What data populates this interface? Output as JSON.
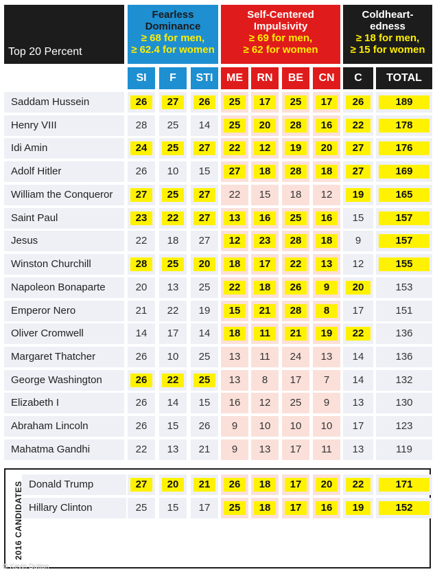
{
  "header": {
    "left_title": "Top 20 Percent",
    "groups": [
      {
        "title_lines": [
          "Fearless",
          "Dominance"
        ],
        "criteria_lines": [
          "≥ 68 for men,",
          "≥ 62.4 for women"
        ]
      },
      {
        "title_lines": [
          "Self-Centered",
          "Impulsivity"
        ],
        "criteria_lines": [
          "≥ 69 for men,",
          "≥ 62 for women"
        ]
      },
      {
        "title_lines": [
          "Coldheart-",
          "edness"
        ],
        "criteria_lines": [
          "≥ 18 for men,",
          "≥ 15 for women"
        ]
      }
    ]
  },
  "colors": {
    "fearless_dominance": "#1e8fd1",
    "self_centered_impulsivity": "#e01b1b",
    "coldheartedness": "#1c1c1c",
    "highlight": "#fff200"
  },
  "chart_data": {
    "type": "table",
    "columns": [
      "SI",
      "F",
      "STI",
      "ME",
      "RN",
      "BE",
      "CN",
      "C",
      "TOTAL"
    ],
    "rows": [
      {
        "name": "Saddam Hussein",
        "values": [
          26,
          27,
          26,
          25,
          17,
          25,
          17,
          26,
          189
        ],
        "highlight": [
          true,
          true,
          true,
          true,
          true,
          true,
          true,
          true,
          true
        ]
      },
      {
        "name": "Henry VIII",
        "values": [
          28,
          25,
          14,
          25,
          20,
          28,
          16,
          22,
          178
        ],
        "highlight": [
          false,
          false,
          false,
          true,
          true,
          true,
          true,
          true,
          true
        ]
      },
      {
        "name": "Idi Amin",
        "values": [
          24,
          25,
          27,
          22,
          12,
          19,
          20,
          27,
          176
        ],
        "highlight": [
          true,
          true,
          true,
          true,
          true,
          true,
          true,
          true,
          true
        ]
      },
      {
        "name": "Adolf Hitler",
        "values": [
          26,
          10,
          15,
          27,
          18,
          28,
          18,
          27,
          169
        ],
        "highlight": [
          false,
          false,
          false,
          true,
          true,
          true,
          true,
          true,
          true
        ]
      },
      {
        "name": "William the Conqueror",
        "values": [
          27,
          25,
          27,
          22,
          15,
          18,
          12,
          19,
          165
        ],
        "highlight": [
          true,
          true,
          true,
          false,
          false,
          false,
          false,
          true,
          true
        ]
      },
      {
        "name": "Saint Paul",
        "values": [
          23,
          22,
          27,
          13,
          16,
          25,
          16,
          15,
          157
        ],
        "highlight": [
          true,
          true,
          true,
          true,
          true,
          true,
          true,
          false,
          true
        ]
      },
      {
        "name": "Jesus",
        "values": [
          22,
          18,
          27,
          12,
          23,
          28,
          18,
          9,
          157
        ],
        "highlight": [
          false,
          false,
          false,
          true,
          true,
          true,
          true,
          false,
          true
        ]
      },
      {
        "name": "Winston Churchill",
        "values": [
          28,
          25,
          20,
          18,
          17,
          22,
          13,
          12,
          155
        ],
        "highlight": [
          true,
          true,
          true,
          true,
          true,
          true,
          true,
          false,
          true
        ]
      },
      {
        "name": "Napoleon Bonaparte",
        "values": [
          20,
          13,
          25,
          22,
          18,
          26,
          9,
          20,
          153
        ],
        "highlight": [
          false,
          false,
          false,
          true,
          true,
          true,
          true,
          true,
          false
        ]
      },
      {
        "name": "Emperor Nero",
        "values": [
          21,
          22,
          19,
          15,
          21,
          28,
          8,
          17,
          151
        ],
        "highlight": [
          false,
          false,
          false,
          true,
          true,
          true,
          true,
          false,
          false
        ]
      },
      {
        "name": "Oliver Cromwell",
        "values": [
          14,
          17,
          14,
          18,
          11,
          21,
          19,
          22,
          136
        ],
        "highlight": [
          false,
          false,
          false,
          true,
          true,
          true,
          true,
          true,
          false
        ]
      },
      {
        "name": "Margaret Thatcher",
        "values": [
          26,
          10,
          25,
          13,
          11,
          24,
          13,
          14,
          136
        ],
        "highlight": [
          false,
          false,
          false,
          false,
          false,
          false,
          false,
          false,
          false
        ]
      },
      {
        "name": "George Washington",
        "values": [
          26,
          22,
          25,
          13,
          8,
          17,
          7,
          14,
          132
        ],
        "highlight": [
          true,
          true,
          true,
          false,
          false,
          false,
          false,
          false,
          false
        ]
      },
      {
        "name": "Elizabeth I",
        "values": [
          26,
          14,
          15,
          16,
          12,
          25,
          9,
          13,
          130
        ],
        "highlight": [
          false,
          false,
          false,
          false,
          false,
          false,
          false,
          false,
          false
        ]
      },
      {
        "name": "Abraham Lincoln",
        "values": [
          26,
          15,
          26,
          9,
          10,
          10,
          10,
          17,
          123
        ],
        "highlight": [
          false,
          false,
          false,
          false,
          false,
          false,
          false,
          false,
          false
        ]
      },
      {
        "name": "Mahatma Gandhi",
        "values": [
          22,
          13,
          21,
          9,
          13,
          17,
          11,
          13,
          119
        ],
        "highlight": [
          false,
          false,
          false,
          false,
          false,
          false,
          false,
          false,
          false
        ]
      }
    ],
    "candidates_label": "2016 CANDIDATES",
    "candidates": [
      {
        "name": "Donald Trump",
        "values": [
          27,
          20,
          21,
          26,
          18,
          17,
          20,
          22,
          171
        ],
        "highlight": [
          true,
          true,
          true,
          true,
          true,
          true,
          true,
          true,
          true
        ]
      },
      {
        "name": "Hillary Clinton",
        "values": [
          25,
          15,
          17,
          25,
          18,
          17,
          16,
          19,
          152
        ],
        "highlight": [
          false,
          false,
          false,
          true,
          true,
          true,
          true,
          true,
          true
        ]
      }
    ]
  },
  "credit": "© Kevin Dutton"
}
